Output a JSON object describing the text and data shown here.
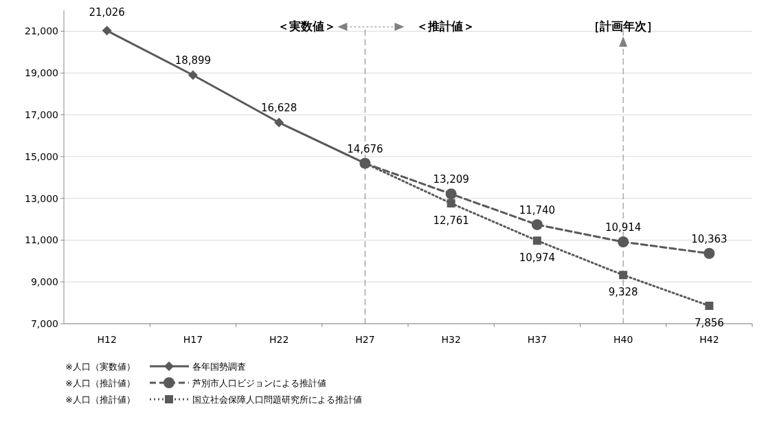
{
  "chart_data": {
    "type": "line",
    "categories": [
      "H12",
      "H17",
      "H22",
      "H27",
      "H32",
      "H37",
      "H40",
      "H42"
    ],
    "series": [
      {
        "name": "各年国勢調査",
        "color": "#595959",
        "marker": "diamond",
        "line_style": "solid",
        "values": [
          21026,
          18899,
          16628,
          14676,
          null,
          null,
          null,
          null
        ],
        "value_labels": [
          "21,026",
          "18,899",
          "16,628",
          "14,676",
          null,
          null,
          null,
          null
        ]
      },
      {
        "name": "芦別市人口ビジョンによる推計値",
        "color": "#595959",
        "marker": "circle",
        "line_style": "dashed",
        "values": [
          null,
          null,
          null,
          14676,
          13209,
          11740,
          10914,
          10363
        ],
        "value_labels": [
          null,
          null,
          null,
          null,
          "13,209",
          "11,740",
          "10,914",
          "10,363"
        ]
      },
      {
        "name": "国立社会保障人口問題研究所による推計値",
        "color": "#595959",
        "marker": "square",
        "line_style": "dotted",
        "values": [
          null,
          null,
          null,
          14676,
          12761,
          10974,
          9328,
          7856
        ],
        "value_labels": [
          null,
          null,
          null,
          null,
          "12,761",
          "10,974",
          "9,328",
          "7,856"
        ]
      }
    ],
    "ylim": [
      7000,
      22000
    ],
    "yticks": [
      {
        "value": 7000,
        "label": "7,000"
      },
      {
        "value": 9000,
        "label": "9,000"
      },
      {
        "value": 11000,
        "label": "11,000"
      },
      {
        "value": 13000,
        "label": "13,000"
      },
      {
        "value": 15000,
        "label": "15,000"
      },
      {
        "value": 17000,
        "label": "17,000"
      },
      {
        "value": 19000,
        "label": "19,000"
      },
      {
        "value": 21000,
        "label": "21,000"
      }
    ],
    "grid": "y",
    "legend": "bottom",
    "ref_lines": [
      {
        "axis": "x",
        "value": "H27",
        "line_style": "dashed",
        "color": "#808080"
      },
      {
        "axis": "x",
        "value": "H40",
        "line_style": "dashed",
        "color": "#808080"
      }
    ],
    "annotations": [
      "＜実数値＞",
      "＜推計値＞",
      "［計画年次］",
      "※人口（実数値）",
      "※人口（推計値）",
      "※人口（推計値）"
    ]
  }
}
